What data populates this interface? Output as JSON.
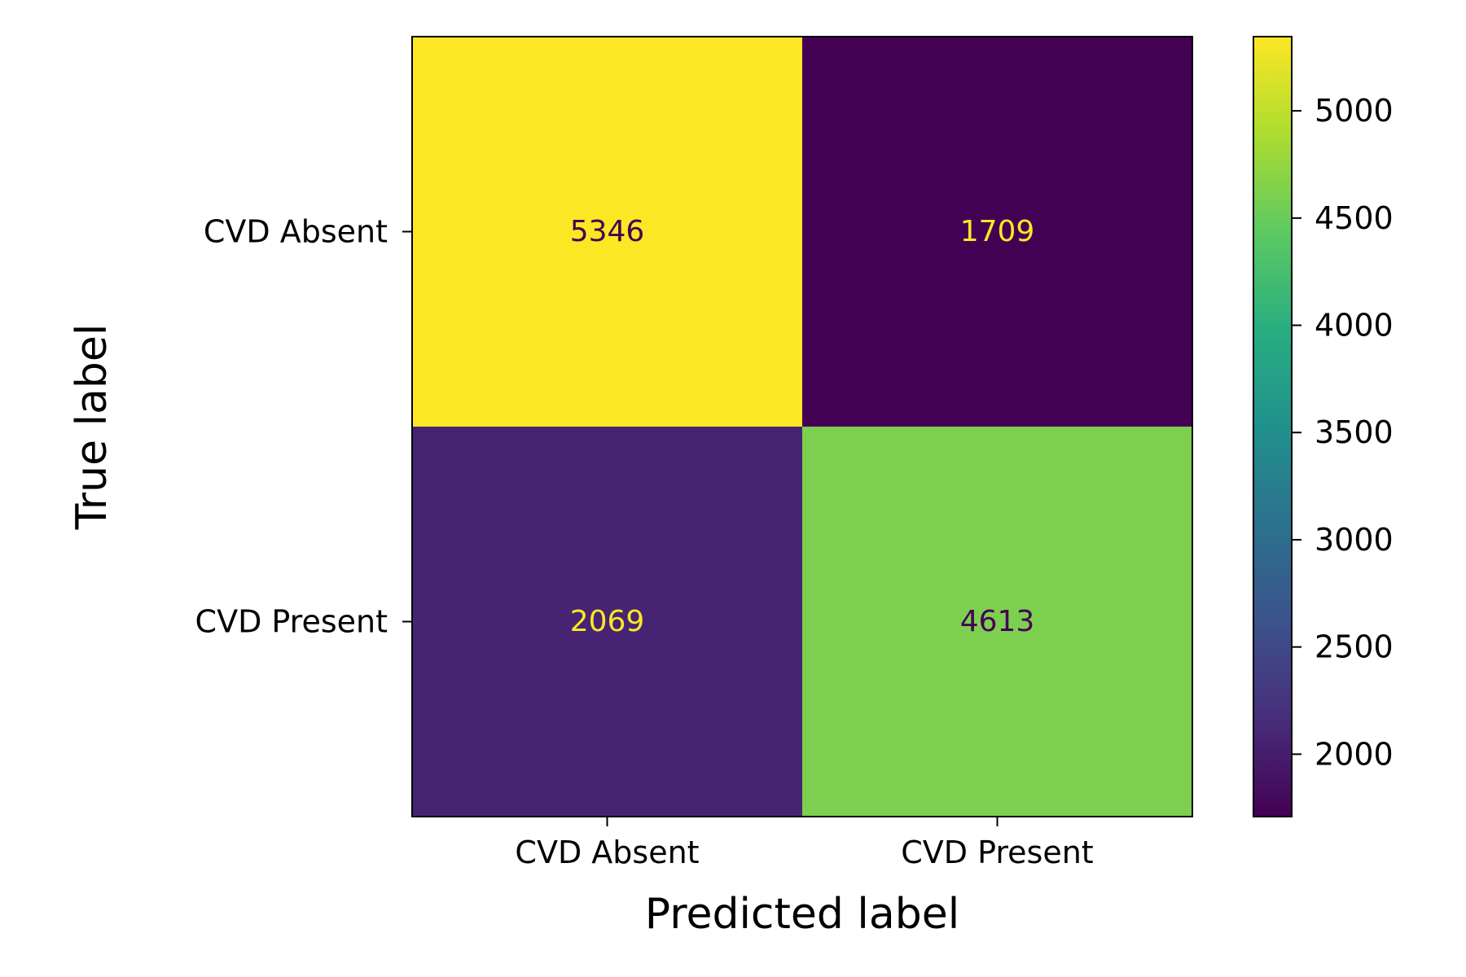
{
  "chart_data": {
    "type": "heatmap",
    "xlabel": "Predicted label",
    "ylabel": "True label",
    "x_categories": [
      "CVD Absent",
      "CVD Present"
    ],
    "y_categories": [
      "CVD Absent",
      "CVD Present"
    ],
    "values": [
      [
        5346,
        1709
      ],
      [
        2069,
        4613
      ]
    ],
    "colormap": "viridis",
    "colorbar": {
      "range": [
        1709,
        5346
      ],
      "ticks": [
        2000,
        2500,
        3000,
        3500,
        4000,
        4500,
        5000
      ],
      "tick_labels": [
        "2000",
        "2500",
        "3000",
        "3500",
        "4000",
        "4500",
        "5000"
      ]
    },
    "text_colors": {
      "on_dark": "#fde725",
      "on_light": "#440154"
    },
    "grid": false
  }
}
